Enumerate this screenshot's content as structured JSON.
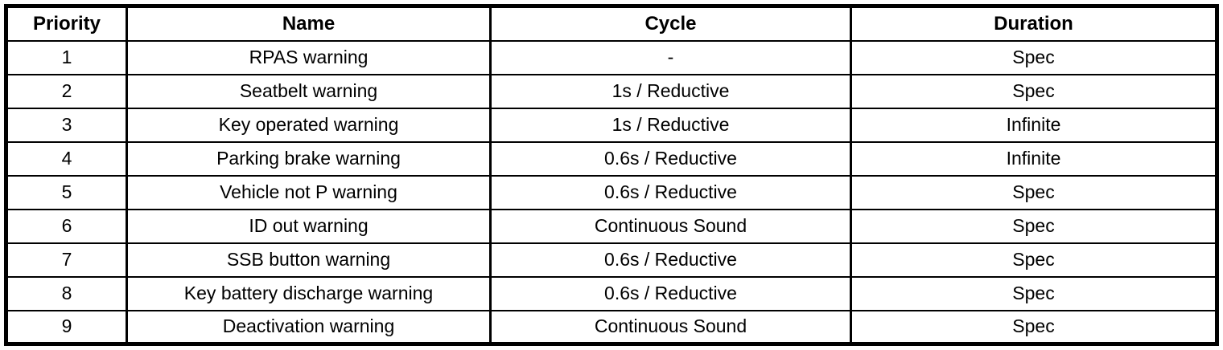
{
  "colors": {
    "background": "#ffffff",
    "border": "#000000",
    "text": "#000000"
  },
  "table": {
    "name": "warning-priority-table",
    "columns": [
      {
        "label": "Priority"
      },
      {
        "label": "Name"
      },
      {
        "label": "Cycle"
      },
      {
        "label": "Duration"
      }
    ],
    "rows": [
      {
        "priority": "1",
        "name": "RPAS warning",
        "cycle": "-",
        "duration": "Spec"
      },
      {
        "priority": "2",
        "name": "Seatbelt warning",
        "cycle": "1s / Reductive",
        "duration": "Spec"
      },
      {
        "priority": "3",
        "name": "Key operated warning",
        "cycle": "1s / Reductive",
        "duration": "Infinite"
      },
      {
        "priority": "4",
        "name": "Parking brake warning",
        "cycle": "0.6s / Reductive",
        "duration": "Infinite"
      },
      {
        "priority": "5",
        "name": "Vehicle not P warning",
        "cycle": "0.6s / Reductive",
        "duration": "Spec"
      },
      {
        "priority": "6",
        "name": "ID out warning",
        "cycle": "Continuous Sound",
        "duration": "Spec"
      },
      {
        "priority": "7",
        "name": "SSB button warning",
        "cycle": "0.6s / Reductive",
        "duration": "Spec"
      },
      {
        "priority": "8",
        "name": "Key battery discharge warning",
        "cycle": "0.6s / Reductive",
        "duration": "Spec"
      },
      {
        "priority": "9",
        "name": "Deactivation warning",
        "cycle": "Continuous Sound",
        "duration": "Spec"
      }
    ]
  }
}
